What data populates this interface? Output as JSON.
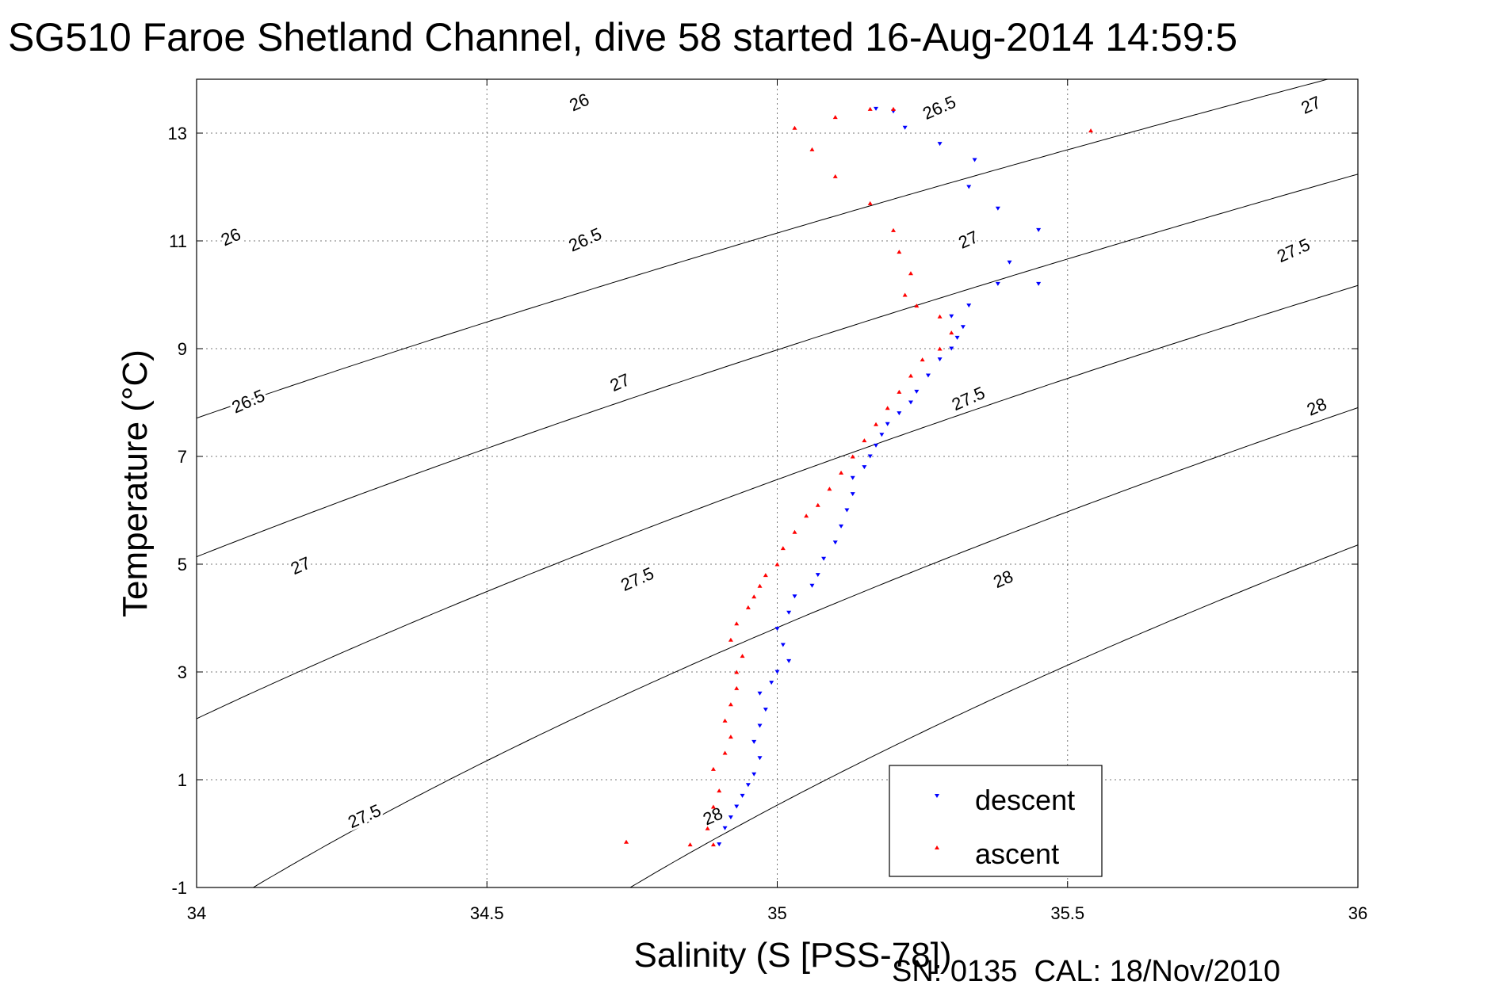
{
  "chart_data": {
    "type": "scatter",
    "title": "SG510 Faroe Shetland Channel, dive 58 started 16-Aug-2014 14:59:5",
    "xlabel": "Salinity (S [PSS-78])",
    "ylabel": "Temperature (°C)",
    "xlim": [
      34,
      36
    ],
    "ylim": [
      -1,
      14
    ],
    "xticks": [
      34,
      34.5,
      35,
      35.5,
      36
    ],
    "yticks": [
      -1,
      1,
      3,
      5,
      7,
      9,
      11,
      13
    ],
    "grid": true,
    "legend_position": "bottom-right",
    "density_contours": {
      "levels": [
        26,
        26.5,
        27,
        27.5,
        28
      ],
      "labels": [
        {
          "text": "26",
          "s": 34.06,
          "t": 11.05
        },
        {
          "text": "26",
          "s": 34.66,
          "t": 13.55
        },
        {
          "text": "26.5",
          "s": 34.09,
          "t": 8.0
        },
        {
          "text": "26.5",
          "s": 34.67,
          "t": 11.0
        },
        {
          "text": "26.5",
          "s": 35.28,
          "t": 13.45
        },
        {
          "text": "27",
          "s": 34.18,
          "t": 4.95
        },
        {
          "text": "27",
          "s": 34.73,
          "t": 8.35
        },
        {
          "text": "27",
          "s": 35.33,
          "t": 11.0
        },
        {
          "text": "27",
          "s": 35.92,
          "t": 13.5
        },
        {
          "text": "27.5",
          "s": 34.29,
          "t": 0.3
        },
        {
          "text": "27.5",
          "s": 34.76,
          "t": 4.7
        },
        {
          "text": "27.5",
          "s": 35.33,
          "t": 8.05
        },
        {
          "text": "27.5",
          "s": 35.89,
          "t": 10.8
        },
        {
          "text": "28",
          "s": 34.89,
          "t": 0.3
        },
        {
          "text": "28",
          "s": 35.39,
          "t": 4.7
        },
        {
          "text": "28",
          "s": 35.93,
          "t": 7.9
        }
      ]
    },
    "series": [
      {
        "name": "descent",
        "color": "#0000ff",
        "marker": "triangle-down",
        "points": [
          [
            34.9,
            -0.2
          ],
          [
            34.91,
            0.1
          ],
          [
            34.92,
            0.3
          ],
          [
            34.93,
            0.5
          ],
          [
            34.94,
            0.7
          ],
          [
            34.95,
            0.9
          ],
          [
            34.96,
            1.1
          ],
          [
            34.97,
            1.4
          ],
          [
            34.96,
            1.7
          ],
          [
            34.97,
            2.0
          ],
          [
            34.98,
            2.3
          ],
          [
            34.97,
            2.6
          ],
          [
            34.99,
            2.8
          ],
          [
            35.0,
            3.0
          ],
          [
            35.02,
            3.2
          ],
          [
            35.01,
            3.5
          ],
          [
            35.0,
            3.8
          ],
          [
            35.02,
            4.1
          ],
          [
            35.03,
            4.4
          ],
          [
            35.06,
            4.6
          ],
          [
            35.07,
            4.8
          ],
          [
            35.08,
            5.1
          ],
          [
            35.1,
            5.4
          ],
          [
            35.11,
            5.7
          ],
          [
            35.12,
            6.0
          ],
          [
            35.13,
            6.3
          ],
          [
            35.13,
            6.6
          ],
          [
            35.15,
            6.8
          ],
          [
            35.16,
            7.0
          ],
          [
            35.17,
            7.2
          ],
          [
            35.18,
            7.4
          ],
          [
            35.19,
            7.6
          ],
          [
            35.21,
            7.8
          ],
          [
            35.23,
            8.0
          ],
          [
            35.24,
            8.2
          ],
          [
            35.26,
            8.5
          ],
          [
            35.28,
            8.8
          ],
          [
            35.3,
            9.0
          ],
          [
            35.31,
            9.2
          ],
          [
            35.32,
            9.4
          ],
          [
            35.3,
            9.6
          ],
          [
            35.33,
            9.8
          ],
          [
            35.38,
            10.2
          ],
          [
            35.45,
            10.2
          ],
          [
            35.4,
            10.6
          ],
          [
            35.45,
            11.2
          ],
          [
            35.38,
            11.6
          ],
          [
            35.33,
            12.0
          ],
          [
            35.34,
            12.5
          ],
          [
            35.28,
            12.8
          ],
          [
            35.22,
            13.1
          ],
          [
            35.2,
            13.4
          ],
          [
            35.17,
            13.45
          ]
        ]
      },
      {
        "name": "ascent",
        "color": "#ff0000",
        "marker": "triangle-up",
        "points": [
          [
            34.89,
            -0.2
          ],
          [
            34.88,
            0.1
          ],
          [
            34.89,
            0.5
          ],
          [
            34.9,
            0.8
          ],
          [
            34.89,
            1.2
          ],
          [
            34.91,
            1.5
          ],
          [
            34.92,
            1.8
          ],
          [
            34.91,
            2.1
          ],
          [
            34.92,
            2.4
          ],
          [
            34.93,
            2.7
          ],
          [
            34.93,
            3.0
          ],
          [
            34.94,
            3.3
          ],
          [
            34.92,
            3.6
          ],
          [
            34.93,
            3.9
          ],
          [
            34.95,
            4.2
          ],
          [
            34.96,
            4.4
          ],
          [
            34.97,
            4.6
          ],
          [
            34.98,
            4.8
          ],
          [
            35.0,
            5.0
          ],
          [
            35.01,
            5.3
          ],
          [
            35.03,
            5.6
          ],
          [
            35.05,
            5.9
          ],
          [
            35.07,
            6.1
          ],
          [
            35.09,
            6.4
          ],
          [
            35.11,
            6.7
          ],
          [
            35.13,
            7.0
          ],
          [
            35.15,
            7.3
          ],
          [
            35.17,
            7.6
          ],
          [
            35.19,
            7.9
          ],
          [
            35.21,
            8.2
          ],
          [
            35.23,
            8.5
          ],
          [
            35.25,
            8.8
          ],
          [
            35.28,
            9.0
          ],
          [
            35.3,
            9.3
          ],
          [
            35.28,
            9.6
          ],
          [
            35.24,
            9.8
          ],
          [
            35.22,
            10.0
          ],
          [
            35.23,
            10.4
          ],
          [
            35.21,
            10.8
          ],
          [
            35.2,
            11.2
          ],
          [
            35.16,
            11.7
          ],
          [
            35.1,
            12.2
          ],
          [
            35.06,
            12.7
          ],
          [
            35.03,
            13.1
          ],
          [
            35.1,
            13.3
          ],
          [
            35.16,
            13.45
          ],
          [
            35.2,
            13.45
          ],
          [
            34.74,
            -0.15
          ],
          [
            34.85,
            -0.2
          ],
          [
            35.54,
            13.05
          ]
        ]
      }
    ]
  }
}
